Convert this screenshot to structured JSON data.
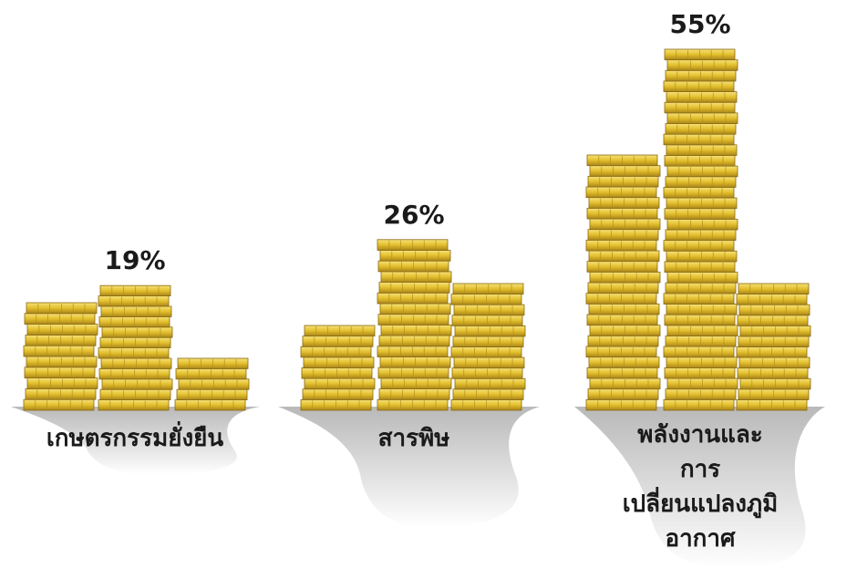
{
  "chart_data": {
    "type": "coin-stacks",
    "categories": [
      "เกษตรกรรมยั่งยืน",
      "สารพิษ",
      "พลังงานและ\nการเปลี่ยนแปลงภูมิอากาศ"
    ],
    "values": [
      19,
      26,
      55
    ],
    "value_labels": [
      "19%",
      "26%",
      "55%"
    ],
    "color": "#e9c936"
  }
}
